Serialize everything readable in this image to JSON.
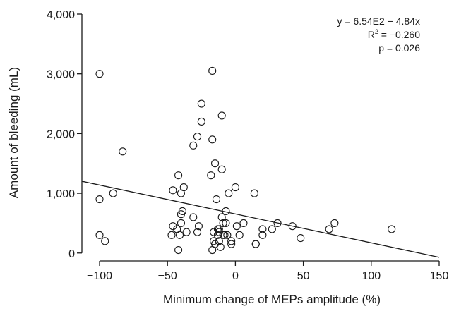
{
  "chart_data": {
    "type": "scatter",
    "xlabel": "Minimum change of MEPs amplitude (%)",
    "ylabel": "Amount of bleeding (mL)",
    "xlim": [
      -113,
      150
    ],
    "ylim": [
      -50,
      4000
    ],
    "x_ticks": [
      -100,
      -50,
      0,
      50,
      100,
      150
    ],
    "x_tick_labels": [
      "−100",
      "−50",
      "0",
      "50",
      "100",
      "150"
    ],
    "y_ticks": [
      0,
      1000,
      2000,
      3000,
      4000
    ],
    "y_tick_labels": [
      "0",
      "1,000",
      "2,000",
      "3,000",
      "4,000"
    ],
    "grid": false,
    "annotations": {
      "equation": "y = 6.54E2 − 4.84x",
      "r_squared_label": "R",
      "r_squared_sup": "2",
      "r_squared_value": " = −0.260",
      "p_value": "p = 0.026"
    },
    "regression": {
      "intercept": 654,
      "slope": -4.84,
      "x_range": [
        -113,
        150
      ]
    },
    "points": [
      [
        -100,
        3000
      ],
      [
        -100,
        900
      ],
      [
        -100,
        300
      ],
      [
        -96,
        200
      ],
      [
        -90,
        1000
      ],
      [
        -83,
        1700
      ],
      [
        -46,
        1050
      ],
      [
        -46,
        450
      ],
      [
        -47,
        300
      ],
      [
        -43,
        400
      ],
      [
        -42,
        1300
      ],
      [
        -42,
        50
      ],
      [
        -41,
        300
      ],
      [
        -40,
        1000
      ],
      [
        -40,
        650
      ],
      [
        -39,
        700
      ],
      [
        -40,
        500
      ],
      [
        -38,
        1100
      ],
      [
        -36,
        350
      ],
      [
        -31,
        1800
      ],
      [
        -31,
        600
      ],
      [
        -28,
        1950
      ],
      [
        -27,
        450
      ],
      [
        -28,
        350
      ],
      [
        -25,
        2500
      ],
      [
        -25,
        2200
      ],
      [
        -18,
        1300
      ],
      [
        -17,
        1900
      ],
      [
        -17,
        3050
      ],
      [
        -16,
        350
      ],
      [
        -16,
        200
      ],
      [
        -17,
        50
      ],
      [
        -15,
        150
      ],
      [
        -15,
        1500
      ],
      [
        -14,
        900
      ],
      [
        -13,
        400
      ],
      [
        -13,
        300
      ],
      [
        -12,
        400
      ],
      [
        -12,
        350
      ],
      [
        -12,
        200
      ],
      [
        -11,
        100
      ],
      [
        -10,
        2300
      ],
      [
        -10,
        1400
      ],
      [
        -10,
        600
      ],
      [
        -9,
        500
      ],
      [
        -9,
        300
      ],
      [
        -8,
        300
      ],
      [
        -7,
        700
      ],
      [
        -7,
        500
      ],
      [
        -6,
        300
      ],
      [
        -5,
        1000
      ],
      [
        -3,
        200
      ],
      [
        -3,
        150
      ],
      [
        0,
        1100
      ],
      [
        1,
        450
      ],
      [
        3,
        300
      ],
      [
        6,
        500
      ],
      [
        14,
        1000
      ],
      [
        15,
        150
      ],
      [
        15,
        150
      ],
      [
        20,
        400
      ],
      [
        20,
        300
      ],
      [
        27,
        400
      ],
      [
        31,
        500
      ],
      [
        42,
        450
      ],
      [
        48,
        250
      ],
      [
        69,
        400
      ],
      [
        73,
        500
      ],
      [
        115,
        400
      ]
    ]
  }
}
